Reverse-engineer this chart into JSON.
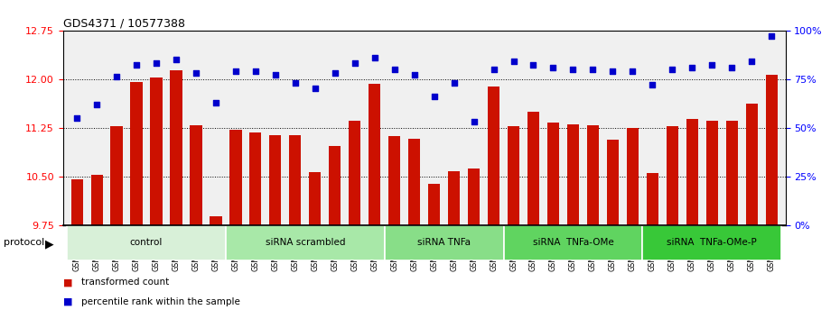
{
  "title": "GDS4371 / 10577388",
  "samples": [
    "GSM790907",
    "GSM790908",
    "GSM790909",
    "GSM790910",
    "GSM790911",
    "GSM790912",
    "GSM790913",
    "GSM790914",
    "GSM790915",
    "GSM790916",
    "GSM790917",
    "GSM790918",
    "GSM790919",
    "GSM790920",
    "GSM790921",
    "GSM790922",
    "GSM790923",
    "GSM790924",
    "GSM790925",
    "GSM790926",
    "GSM790927",
    "GSM790928",
    "GSM790929",
    "GSM790930",
    "GSM790931",
    "GSM790932",
    "GSM790933",
    "GSM790934",
    "GSM790935",
    "GSM790936",
    "GSM790937",
    "GSM790938",
    "GSM790939",
    "GSM790940",
    "GSM790941",
    "GSM790942"
  ],
  "bar_values": [
    10.45,
    10.52,
    11.27,
    11.95,
    12.02,
    12.13,
    11.28,
    9.88,
    11.22,
    11.18,
    11.14,
    11.13,
    10.57,
    10.97,
    11.35,
    11.93,
    11.12,
    11.08,
    10.38,
    10.58,
    10.62,
    11.88,
    11.27,
    11.5,
    11.33,
    11.3,
    11.28,
    11.07,
    11.24,
    10.55,
    11.27,
    11.38,
    11.35,
    11.35,
    11.62,
    12.06
  ],
  "percentile_values": [
    55,
    62,
    76,
    82,
    83,
    85,
    78,
    63,
    79,
    79,
    77,
    73,
    70,
    78,
    83,
    86,
    80,
    77,
    66,
    73,
    53,
    80,
    84,
    82,
    81,
    80,
    80,
    79,
    79,
    72,
    80,
    81,
    82,
    81,
    84,
    97
  ],
  "groups": [
    {
      "label": "control",
      "start": 0,
      "end": 7,
      "color": "#d8f0d8"
    },
    {
      "label": "siRNA scrambled",
      "start": 8,
      "end": 15,
      "color": "#a8e8a8"
    },
    {
      "label": "siRNA TNFa",
      "start": 16,
      "end": 21,
      "color": "#88de88"
    },
    {
      "label": "siRNA  TNFa-OMe",
      "start": 22,
      "end": 28,
      "color": "#60d460"
    },
    {
      "label": "siRNA  TNFa-OMe-P",
      "start": 29,
      "end": 35,
      "color": "#38c838"
    }
  ],
  "ylim_left": [
    9.75,
    12.75
  ],
  "ylim_right": [
    0,
    100
  ],
  "yticks_left": [
    9.75,
    10.5,
    11.25,
    12.0,
    12.75
  ],
  "yticks_right": [
    0,
    25,
    50,
    75,
    100
  ],
  "bar_color": "#cc1100",
  "dot_color": "#0000cc",
  "bg_color": "#f0f0f0"
}
